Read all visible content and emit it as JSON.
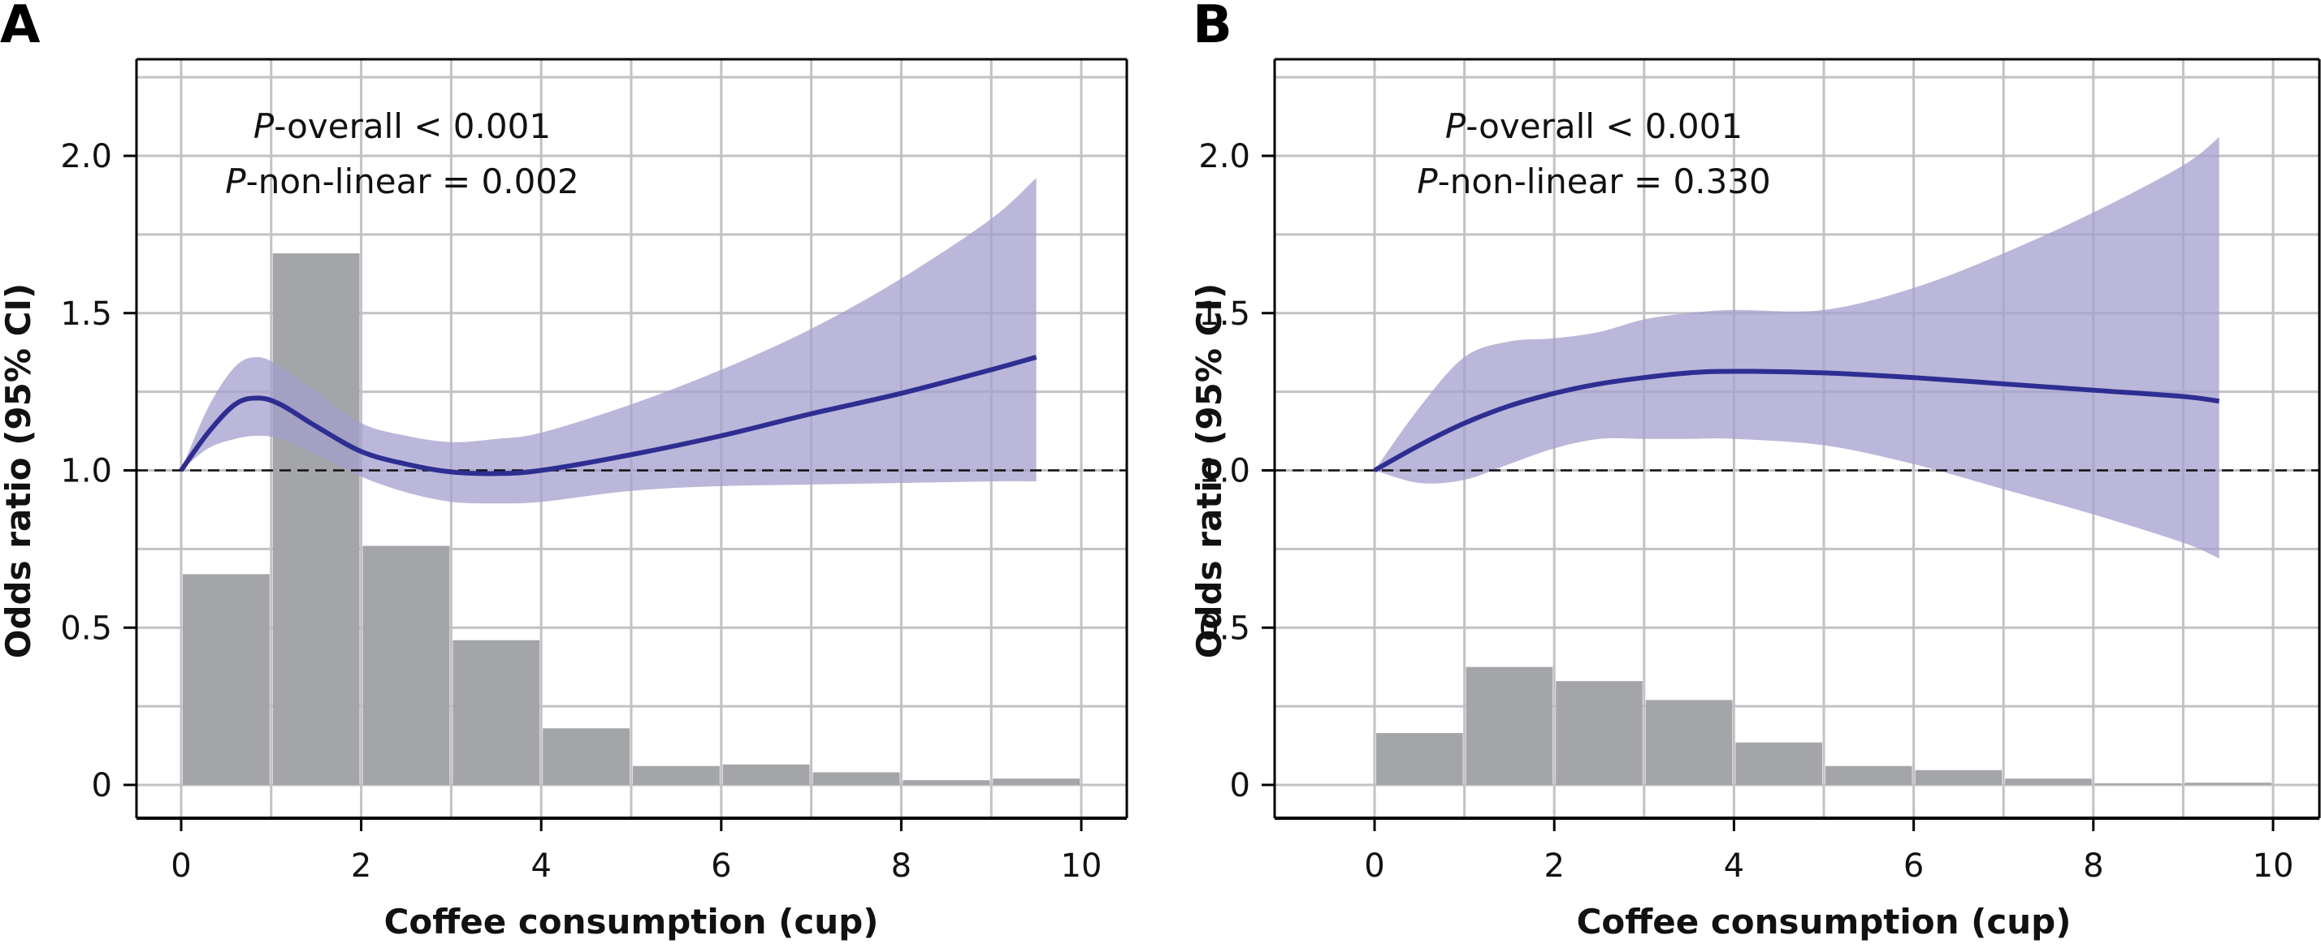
{
  "chart_data": [
    {
      "type": "line",
      "panel": "A",
      "title": "",
      "xlabel": "Coffee consumption (cup)",
      "ylabel": "Odds ratio (95% CI)",
      "xlim": [
        -0.5,
        10.5
      ],
      "ylim": [
        -0.05,
        2.27
      ],
      "xticks": [
        0,
        2,
        4,
        6,
        8,
        10
      ],
      "xtick_labels": [
        "0",
        "2",
        "4",
        "6",
        "8",
        "10"
      ],
      "yticks": [
        0,
        0.5,
        1.0,
        1.5,
        2.0
      ],
      "ytick_labels": [
        "0",
        "0.5",
        "1.0",
        "1.5",
        "2.0"
      ],
      "grid": true,
      "reference_line": 1.0,
      "annotations": [
        {
          "prefix": "P",
          "text": "-overall < 0.001"
        },
        {
          "prefix": "P",
          "text": "-non-linear = 0.002"
        }
      ],
      "histogram": {
        "bin_edges": [
          0,
          1,
          2,
          3,
          4,
          5,
          6,
          7,
          8,
          9,
          10
        ],
        "values": [
          0.67,
          1.69,
          0.76,
          0.46,
          0.18,
          0.06,
          0.065,
          0.04,
          0.015,
          0.02
        ]
      },
      "series": [
        {
          "name": "Odds ratio",
          "x": [
            0,
            0.3,
            0.6,
            0.85,
            1.1,
            1.5,
            2.0,
            2.5,
            3.0,
            3.5,
            4.0,
            5.0,
            6.0,
            7.0,
            8.0,
            9.0,
            9.5
          ],
          "y": [
            1.0,
            1.12,
            1.21,
            1.23,
            1.21,
            1.14,
            1.06,
            1.02,
            0.995,
            0.99,
            1.0,
            1.05,
            1.11,
            1.18,
            1.245,
            1.32,
            1.36
          ],
          "lower": [
            1.0,
            1.07,
            1.1,
            1.11,
            1.1,
            1.05,
            0.98,
            0.93,
            0.9,
            0.895,
            0.9,
            0.935,
            0.95,
            0.955,
            0.96,
            0.965,
            0.965
          ],
          "upper": [
            1.0,
            1.2,
            1.33,
            1.36,
            1.33,
            1.25,
            1.15,
            1.11,
            1.09,
            1.1,
            1.12,
            1.21,
            1.32,
            1.45,
            1.61,
            1.8,
            1.93
          ]
        }
      ]
    },
    {
      "type": "line",
      "panel": "B",
      "title": "",
      "xlabel": "Coffee consumption (cup)",
      "ylabel": "Odds ratio (95% CI)",
      "xlim": [
        -0.5,
        10.5
      ],
      "ylim": [
        -0.05,
        2.27
      ],
      "xticks": [
        0,
        2,
        4,
        6,
        8,
        10
      ],
      "xtick_labels": [
        "0",
        "2",
        "4",
        "6",
        "8",
        "10"
      ],
      "yticks": [
        0,
        0.5,
        1.0,
        1.5,
        2.0
      ],
      "ytick_labels": [
        "0",
        "0.5",
        "1.0",
        "1.5",
        "2.0"
      ],
      "grid": true,
      "reference_line": 1.0,
      "annotations": [
        {
          "prefix": "P",
          "text": "-overall < 0.001"
        },
        {
          "prefix": "P",
          "text": "-non-linear = 0.330"
        }
      ],
      "histogram": {
        "bin_edges": [
          0,
          1,
          2,
          3,
          4,
          5,
          6,
          7,
          8,
          9,
          10
        ],
        "values": [
          0.165,
          0.375,
          0.33,
          0.27,
          0.135,
          0.06,
          0.047,
          0.02,
          0.005,
          0.007
        ]
      },
      "series": [
        {
          "name": "Odds ratio",
          "x": [
            0,
            0.5,
            1.0,
            1.5,
            2.0,
            2.5,
            3.0,
            3.5,
            4.0,
            5.0,
            6.0,
            7.0,
            8.0,
            9.0,
            9.4
          ],
          "y": [
            1.0,
            1.08,
            1.15,
            1.205,
            1.245,
            1.275,
            1.295,
            1.31,
            1.315,
            1.31,
            1.295,
            1.275,
            1.255,
            1.235,
            1.22
          ],
          "lower": [
            1.0,
            0.96,
            0.97,
            1.02,
            1.07,
            1.1,
            1.1,
            1.1,
            1.1,
            1.08,
            1.02,
            0.94,
            0.86,
            0.77,
            0.72
          ],
          "upper": [
            1.0,
            1.2,
            1.36,
            1.41,
            1.42,
            1.44,
            1.48,
            1.5,
            1.51,
            1.51,
            1.58,
            1.69,
            1.82,
            1.97,
            2.06
          ]
        }
      ]
    }
  ],
  "panels": [
    {
      "letter": "A",
      "annot1_p": "P",
      "annot1": "-overall < 0.001",
      "annot2_p": "P",
      "annot2": "-non-linear = 0.002",
      "xlabel": "Coffee consumption (cup)",
      "ylabel": "Odds ratio (95% CI)"
    },
    {
      "letter": "B",
      "annot1_p": "P",
      "annot1": "-overall < 0.001",
      "annot2_p": "P",
      "annot2": "-non-linear = 0.330",
      "xlabel": "Coffee consumption (cup)",
      "ylabel": "Odds ratio (95% CI)"
    }
  ],
  "colors": {
    "line": "#2e2e92",
    "ci_band": "#a49fce",
    "bars": "#a4a5a9",
    "grid": "#c2c2c6",
    "reference": "#111111"
  }
}
